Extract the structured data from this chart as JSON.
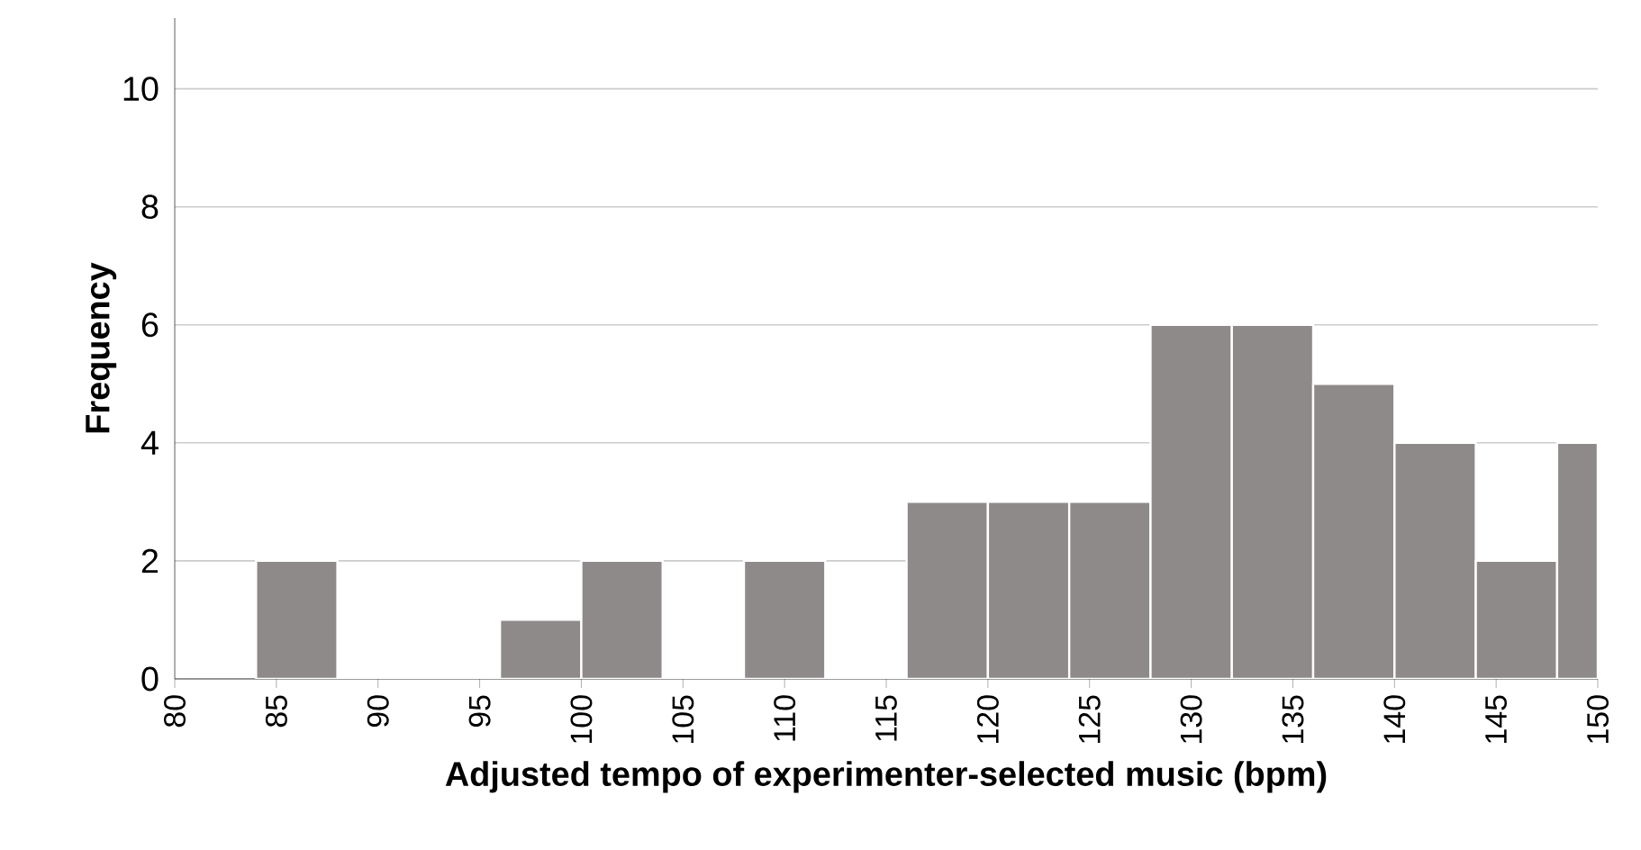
{
  "chart_data": {
    "type": "histogram",
    "xlabel": "Adjusted tempo of experimenter-selected music (bpm)",
    "ylabel": "Frequency",
    "bins": [
      84,
      88,
      96,
      100,
      104,
      108,
      112,
      116,
      120,
      124,
      128,
      132,
      136,
      140,
      144,
      148,
      150
    ],
    "values": [
      2,
      0,
      1,
      2,
      0,
      2,
      0,
      3,
      3,
      3,
      6,
      6,
      5,
      4,
      2,
      4
    ],
    "color": "#8f8a8a",
    "xlim": [
      80,
      150
    ],
    "xticks": [
      80,
      85,
      90,
      95,
      100,
      105,
      110,
      115,
      120,
      125,
      130,
      135,
      140,
      145,
      150
    ],
    "ylim": [
      0,
      11.2
    ],
    "yticks": [
      0,
      2,
      4,
      6,
      8,
      10
    ],
    "grid": "y"
  }
}
